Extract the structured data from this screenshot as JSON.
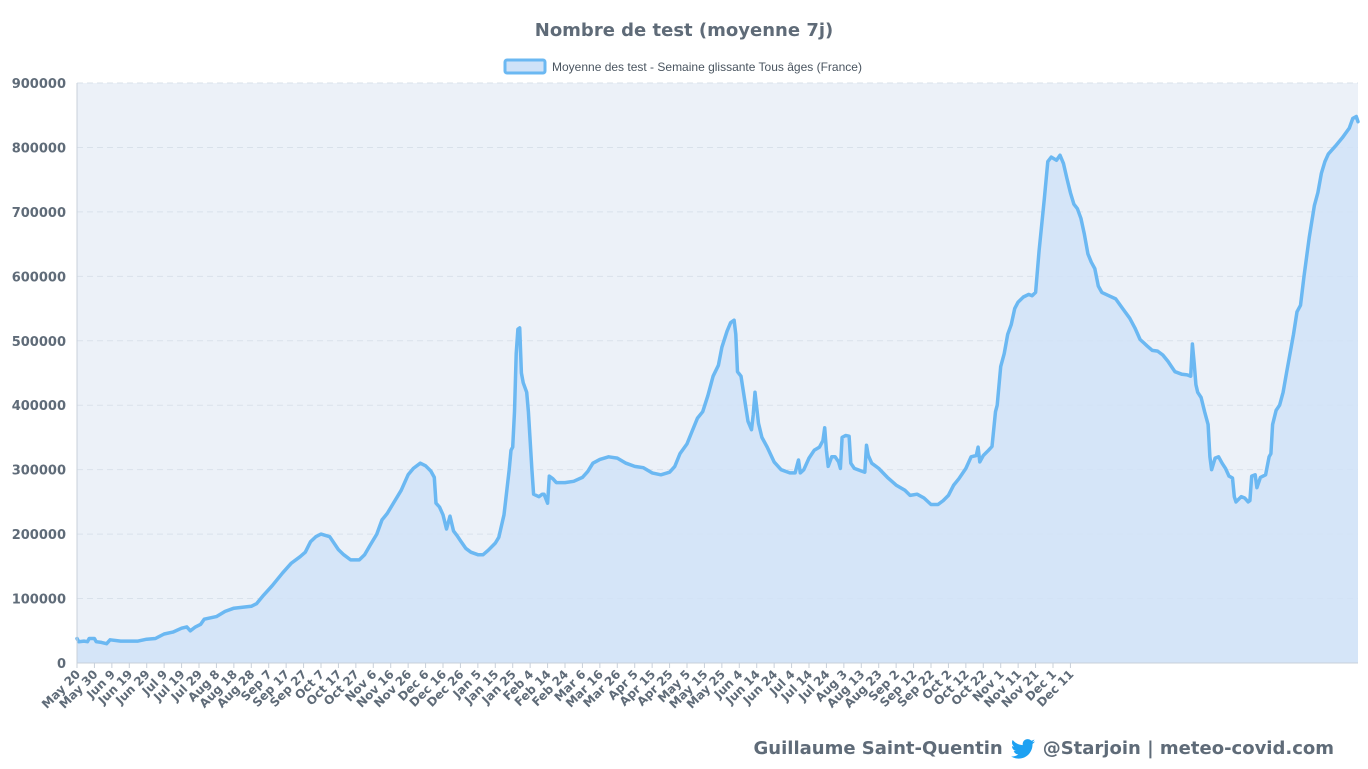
{
  "colors": {
    "line": "#6bb8f2",
    "fill": "#cfe2f8",
    "plot_bg": "#ecf1f8",
    "grid": "#d9e1ea",
    "text": "#5f6b78",
    "twitter": "#1da1f2"
  },
  "footer": {
    "author": "Guillaume Saint-Quentin",
    "handle": "@Starjoin | meteo-covid.com",
    "icon": "twitter-icon"
  },
  "chart_data": {
    "type": "area",
    "title": "Nombre de test (moyenne 7j)",
    "xlabel": "",
    "ylabel": "",
    "ylim": [
      0,
      900000
    ],
    "yticks": [
      0,
      100000,
      200000,
      300000,
      400000,
      500000,
      600000,
      700000,
      800000,
      900000
    ],
    "grid": true,
    "legend_position": "top-center",
    "x_tick_labels": [
      "May 20",
      "May 30",
      "Jun 9",
      "Jun 19",
      "Jun 29",
      "Jul 9",
      "Jul 19",
      "Jul 29",
      "Aug 8",
      "Aug 18",
      "Aug 28",
      "Sep 7",
      "Sep 17",
      "Sep 27",
      "Oct 7",
      "Oct 17",
      "Oct 27",
      "Nov 6",
      "Nov 16",
      "Nov 26",
      "Dec 6",
      "Dec 16",
      "Dec 26",
      "Jan 5",
      "Jan 15",
      "Jan 25",
      "Feb 4",
      "Feb 14",
      "Feb 24",
      "Mar 6",
      "Mar 16",
      "Mar 26",
      "Apr 5",
      "Apr 15",
      "Apr 25",
      "May 5",
      "May 15",
      "May 25",
      "Jun 4",
      "Jun 14",
      "Jun 24",
      "Jul 4",
      "Jul 14",
      "Jul 24",
      "Aug 3",
      "Aug 13",
      "Aug 23",
      "Sep 2",
      "Sep 12",
      "Sep 22",
      "Oct 2",
      "Oct 12",
      "Oct 22",
      "Nov 1",
      "Nov 11",
      "Nov 21",
      "Dec 1",
      "Dec 11"
    ],
    "series": [
      {
        "name": "Moyenne des test - Semaine glissante Tous âges (France)",
        "points": [
          [
            0,
            38000
          ],
          [
            1,
            33000
          ],
          [
            4,
            34000
          ],
          [
            6,
            33000
          ],
          [
            7,
            38000
          ],
          [
            10,
            38000
          ],
          [
            11,
            33000
          ],
          [
            14,
            32000
          ],
          [
            17,
            30000
          ],
          [
            19,
            36000
          ],
          [
            25,
            34000
          ],
          [
            35,
            34000
          ],
          [
            40,
            37000
          ],
          [
            45,
            38000
          ],
          [
            50,
            45000
          ],
          [
            55,
            48000
          ],
          [
            60,
            54000
          ],
          [
            63,
            56000
          ],
          [
            65,
            50000
          ],
          [
            68,
            56000
          ],
          [
            71,
            60000
          ],
          [
            73,
            68000
          ],
          [
            80,
            72000
          ],
          [
            85,
            80000
          ],
          [
            90,
            85000
          ],
          [
            100,
            88000
          ],
          [
            103,
            92000
          ],
          [
            107,
            105000
          ],
          [
            112,
            120000
          ],
          [
            118,
            140000
          ],
          [
            123,
            155000
          ],
          [
            128,
            165000
          ],
          [
            131,
            172000
          ],
          [
            134,
            188000
          ],
          [
            137,
            196000
          ],
          [
            140,
            200000
          ],
          [
            145,
            196000
          ],
          [
            150,
            176000
          ],
          [
            153,
            168000
          ],
          [
            157,
            160000
          ],
          [
            162,
            160000
          ],
          [
            165,
            168000
          ],
          [
            168,
            182000
          ],
          [
            172,
            200000
          ],
          [
            175,
            222000
          ],
          [
            178,
            232000
          ],
          [
            182,
            250000
          ],
          [
            186,
            268000
          ],
          [
            190,
            292000
          ],
          [
            193,
            302000
          ],
          [
            197,
            310000
          ],
          [
            200,
            306000
          ],
          [
            203,
            298000
          ],
          [
            205,
            288000
          ],
          [
            206,
            248000
          ],
          [
            208,
            242000
          ],
          [
            210,
            230000
          ],
          [
            212,
            208000
          ],
          [
            214,
            228000
          ],
          [
            216,
            205000
          ],
          [
            218,
            198000
          ],
          [
            220,
            190000
          ],
          [
            223,
            178000
          ],
          [
            226,
            172000
          ],
          [
            230,
            168000
          ],
          [
            233,
            168000
          ],
          [
            236,
            175000
          ],
          [
            240,
            186000
          ],
          [
            242,
            195000
          ],
          [
            245,
            230000
          ],
          [
            248,
            300000
          ],
          [
            249,
            330000
          ],
          [
            250,
            335000
          ],
          [
            251,
            390000
          ],
          [
            252,
            480000
          ],
          [
            253,
            518000
          ],
          [
            254,
            520000
          ],
          [
            255,
            450000
          ],
          [
            256,
            435000
          ],
          [
            258,
            420000
          ],
          [
            259,
            390000
          ],
          [
            261,
            300000
          ],
          [
            262,
            262000
          ],
          [
            265,
            258000
          ],
          [
            267,
            262000
          ],
          [
            268,
            262000
          ],
          [
            270,
            248000
          ],
          [
            271,
            290000
          ],
          [
            273,
            286000
          ],
          [
            275,
            280000
          ],
          [
            280,
            280000
          ],
          [
            285,
            282000
          ],
          [
            290,
            288000
          ],
          [
            293,
            297000
          ],
          [
            296,
            310000
          ],
          [
            300,
            316000
          ],
          [
            305,
            320000
          ],
          [
            310,
            318000
          ],
          [
            315,
            310000
          ],
          [
            320,
            305000
          ],
          [
            325,
            303000
          ],
          [
            330,
            295000
          ],
          [
            335,
            292000
          ],
          [
            340,
            296000
          ],
          [
            343,
            305000
          ],
          [
            346,
            325000
          ],
          [
            350,
            340000
          ],
          [
            353,
            360000
          ],
          [
            356,
            380000
          ],
          [
            359,
            390000
          ],
          [
            362,
            415000
          ],
          [
            365,
            445000
          ],
          [
            368,
            462000
          ],
          [
            370,
            490000
          ],
          [
            373,
            515000
          ],
          [
            375,
            528000
          ],
          [
            377,
            532000
          ],
          [
            378,
            510000
          ],
          [
            379,
            452000
          ],
          [
            381,
            445000
          ],
          [
            383,
            410000
          ],
          [
            385,
            375000
          ],
          [
            387,
            362000
          ],
          [
            388,
            385000
          ],
          [
            389,
            420000
          ],
          [
            391,
            372000
          ],
          [
            393,
            350000
          ],
          [
            396,
            335000
          ],
          [
            400,
            312000
          ],
          [
            404,
            300000
          ],
          [
            409,
            295000
          ],
          [
            412,
            295000
          ],
          [
            414,
            315000
          ],
          [
            415,
            295000
          ],
          [
            417,
            300000
          ],
          [
            420,
            318000
          ],
          [
            423,
            330000
          ],
          [
            426,
            335000
          ],
          [
            428,
            345000
          ],
          [
            429,
            365000
          ],
          [
            430,
            330000
          ],
          [
            431,
            305000
          ],
          [
            433,
            320000
          ],
          [
            435,
            320000
          ],
          [
            437,
            312000
          ],
          [
            438,
            302000
          ],
          [
            439,
            350000
          ],
          [
            441,
            353000
          ],
          [
            443,
            352000
          ],
          [
            444,
            310000
          ],
          [
            446,
            302000
          ],
          [
            450,
            298000
          ],
          [
            452,
            296000
          ],
          [
            453,
            338000
          ],
          [
            454,
            322000
          ],
          [
            456,
            310000
          ],
          [
            460,
            302000
          ],
          [
            465,
            288000
          ],
          [
            470,
            276000
          ],
          [
            475,
            268000
          ],
          [
            478,
            260000
          ],
          [
            482,
            262000
          ],
          [
            486,
            256000
          ],
          [
            490,
            246000
          ],
          [
            494,
            246000
          ],
          [
            497,
            252000
          ],
          [
            500,
            260000
          ],
          [
            503,
            276000
          ],
          [
            506,
            286000
          ],
          [
            510,
            302000
          ],
          [
            513,
            320000
          ],
          [
            516,
            322000
          ],
          [
            517,
            335000
          ],
          [
            518,
            312000
          ],
          [
            520,
            322000
          ],
          [
            523,
            330000
          ],
          [
            525,
            336000
          ],
          [
            527,
            390000
          ],
          [
            528,
            400000
          ],
          [
            530,
            460000
          ],
          [
            532,
            480000
          ],
          [
            534,
            510000
          ],
          [
            536,
            525000
          ],
          [
            538,
            550000
          ],
          [
            540,
            560000
          ],
          [
            543,
            568000
          ],
          [
            546,
            572000
          ],
          [
            548,
            570000
          ],
          [
            550,
            575000
          ],
          [
            552,
            640000
          ],
          [
            555,
            720000
          ],
          [
            557,
            778000
          ],
          [
            559,
            785000
          ],
          [
            562,
            780000
          ],
          [
            564,
            788000
          ],
          [
            566,
            775000
          ],
          [
            568,
            752000
          ],
          [
            570,
            730000
          ],
          [
            572,
            712000
          ],
          [
            574,
            705000
          ],
          [
            576,
            690000
          ],
          [
            578,
            665000
          ],
          [
            580,
            635000
          ],
          [
            582,
            622000
          ],
          [
            584,
            612000
          ],
          [
            586,
            585000
          ],
          [
            588,
            575000
          ],
          [
            592,
            570000
          ],
          [
            596,
            565000
          ],
          [
            600,
            550000
          ],
          [
            604,
            535000
          ],
          [
            607,
            520000
          ],
          [
            610,
            502000
          ],
          [
            614,
            492000
          ],
          [
            617,
            485000
          ],
          [
            620,
            484000
          ],
          [
            623,
            478000
          ],
          [
            626,
            468000
          ],
          [
            628,
            460000
          ],
          [
            630,
            452000
          ],
          [
            634,
            448000
          ],
          [
            637,
            447000
          ],
          [
            639,
            445000
          ],
          [
            640,
            495000
          ],
          [
            641,
            465000
          ],
          [
            642,
            432000
          ],
          [
            643,
            420000
          ],
          [
            645,
            412000
          ],
          [
            647,
            390000
          ],
          [
            649,
            370000
          ],
          [
            650,
            320000
          ],
          [
            651,
            300000
          ],
          [
            653,
            318000
          ],
          [
            655,
            320000
          ],
          [
            657,
            310000
          ],
          [
            659,
            302000
          ],
          [
            661,
            290000
          ],
          [
            663,
            287000
          ],
          [
            664,
            258000
          ],
          [
            665,
            250000
          ],
          [
            668,
            258000
          ],
          [
            670,
            256000
          ],
          [
            672,
            250000
          ],
          [
            673,
            252000
          ],
          [
            674,
            290000
          ],
          [
            676,
            292000
          ],
          [
            677,
            272000
          ],
          [
            679,
            288000
          ],
          [
            682,
            292000
          ],
          [
            684,
            320000
          ],
          [
            685,
            325000
          ],
          [
            686,
            370000
          ],
          [
            688,
            392000
          ],
          [
            690,
            400000
          ],
          [
            692,
            420000
          ],
          [
            694,
            450000
          ],
          [
            696,
            480000
          ],
          [
            698,
            510000
          ],
          [
            700,
            545000
          ],
          [
            702,
            555000
          ],
          [
            704,
            600000
          ],
          [
            707,
            660000
          ],
          [
            710,
            710000
          ],
          [
            712,
            730000
          ],
          [
            714,
            760000
          ],
          [
            716,
            778000
          ],
          [
            718,
            790000
          ],
          [
            722,
            802000
          ],
          [
            726,
            815000
          ],
          [
            730,
            830000
          ],
          [
            732,
            845000
          ],
          [
            734,
            848000
          ],
          [
            735,
            840000
          ]
        ]
      }
    ]
  }
}
